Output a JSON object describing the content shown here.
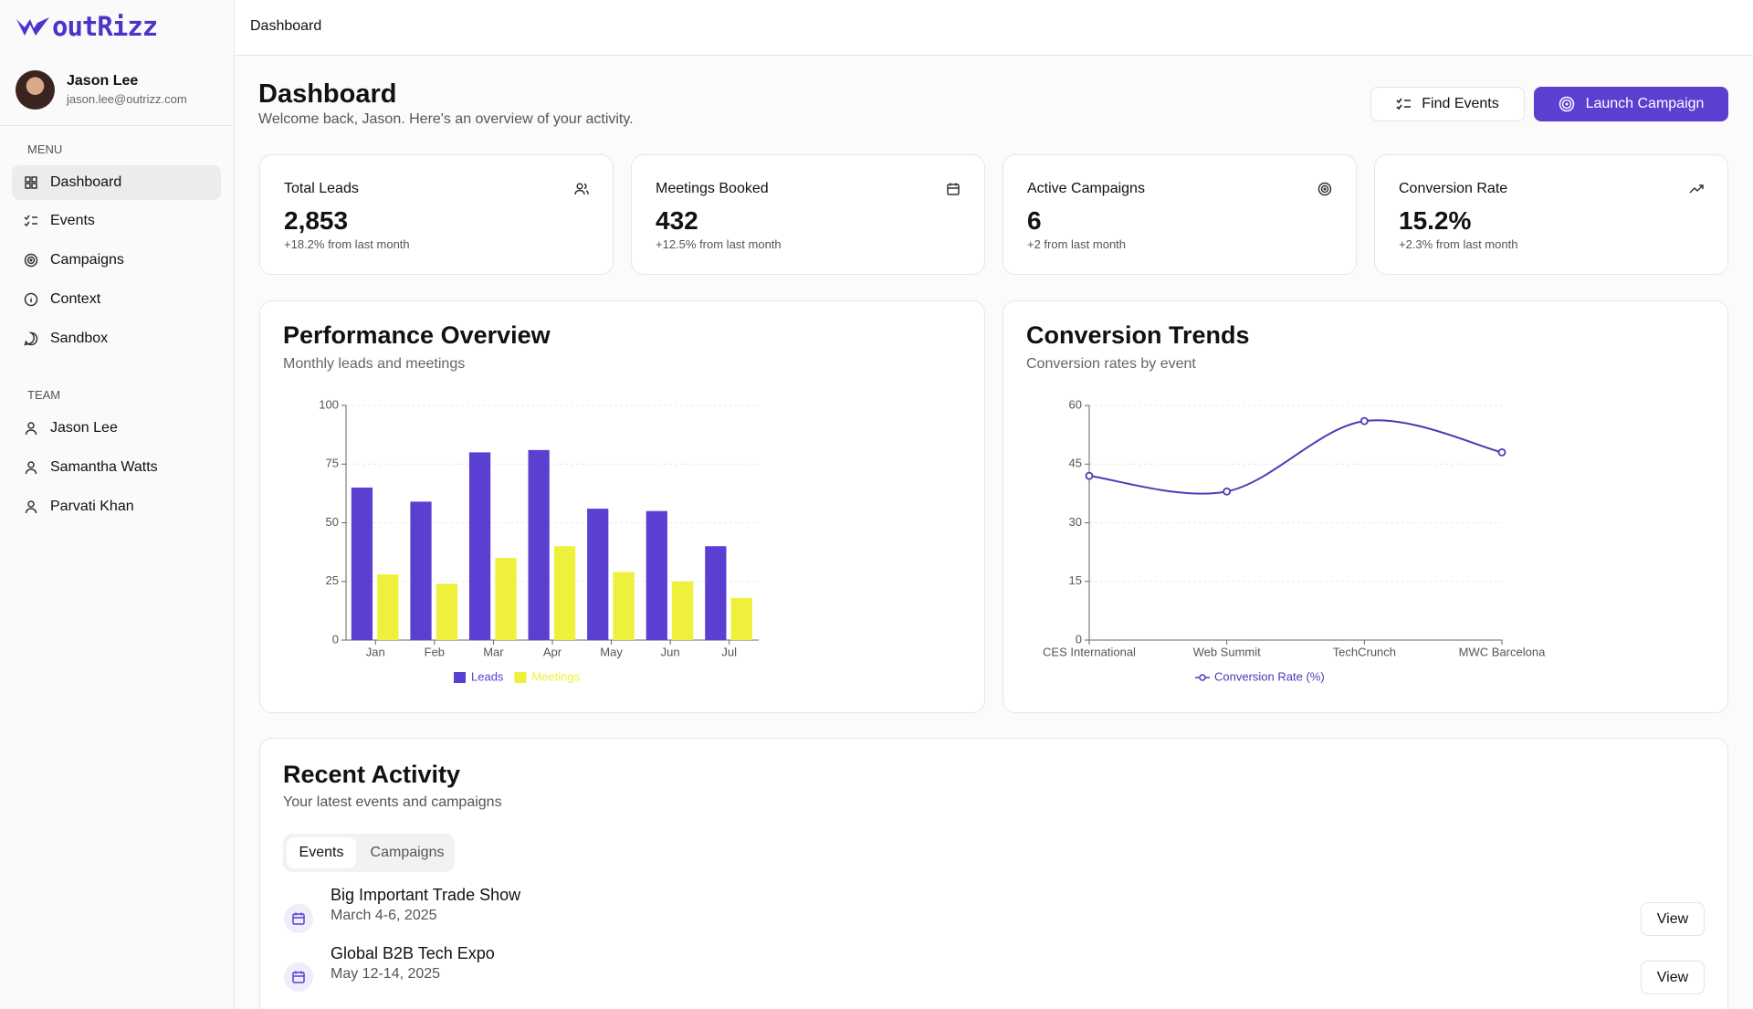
{
  "sidebar": {
    "logo": "outRizz",
    "user": {
      "name": "Jason Lee",
      "email": "jason.lee@outrizz.com"
    },
    "menu_label": "MENU",
    "menu": [
      "Dashboard",
      "Events",
      "Campaigns",
      "Context",
      "Sandbox"
    ],
    "team_label": "TEAM",
    "team": [
      "Jason Lee",
      "Samantha Watts",
      "Parvati Khan"
    ]
  },
  "topbar": {
    "breadcrumb": "Dashboard"
  },
  "header": {
    "title": "Dashboard",
    "subtitle": "Welcome back, Jason. Here's an overview of your activity.",
    "buttons": [
      "Find Events",
      "Launch Campaign"
    ]
  },
  "stats": [
    {
      "label": "Total Leads",
      "value": "2,853",
      "change": "+18.2% from last month"
    },
    {
      "label": "Meetings Booked",
      "value": "432",
      "change": "+12.5% from last month"
    },
    {
      "label": "Active Campaigns",
      "value": "6",
      "change": "+2 from last month"
    },
    {
      "label": "Conversion Rate",
      "value": "15.2%",
      "change": "+2.3% from last month"
    }
  ],
  "chart_data": [
    {
      "type": "bar",
      "title": "Performance Overview",
      "subtitle": "Monthly leads and meetings",
      "categories": [
        "Jan",
        "Feb",
        "Mar",
        "Apr",
        "May",
        "Jun",
        "Jul"
      ],
      "series": [
        {
          "name": "Leads",
          "color": "#5b3fd0",
          "values": [
            65,
            59,
            80,
            81,
            56,
            55,
            40
          ]
        },
        {
          "name": "Meetings",
          "color": "#eef03c",
          "values": [
            28,
            24,
            35,
            40,
            29,
            25,
            18
          ]
        }
      ],
      "ylim": [
        0,
        100
      ],
      "yticks": [
        0,
        25,
        50,
        75,
        100
      ],
      "grid": true,
      "legend": "bottom"
    },
    {
      "type": "line",
      "title": "Conversion Trends",
      "subtitle": "Conversion rates by event",
      "categories": [
        "CES International",
        "Web Summit",
        "TechCrunch",
        "MWC Barcelona"
      ],
      "series": [
        {
          "name": "Conversion Rate (%)",
          "color": "#4b3bb5",
          "values": [
            42,
            38,
            56,
            48
          ]
        }
      ],
      "ylim": [
        0,
        60
      ],
      "yticks": [
        0,
        15,
        30,
        45,
        60
      ],
      "grid": true,
      "legend": "bottom"
    }
  ],
  "activity": {
    "title": "Recent Activity",
    "subtitle": "Your latest events and campaigns",
    "tabs": [
      "Events",
      "Campaigns"
    ],
    "items": [
      {
        "name": "Big Important Trade Show",
        "date": "March 4-6, 2025",
        "action": "View"
      },
      {
        "name": "Global B2B Tech Expo",
        "date": "May 12-14, 2025",
        "action": "View"
      }
    ]
  }
}
